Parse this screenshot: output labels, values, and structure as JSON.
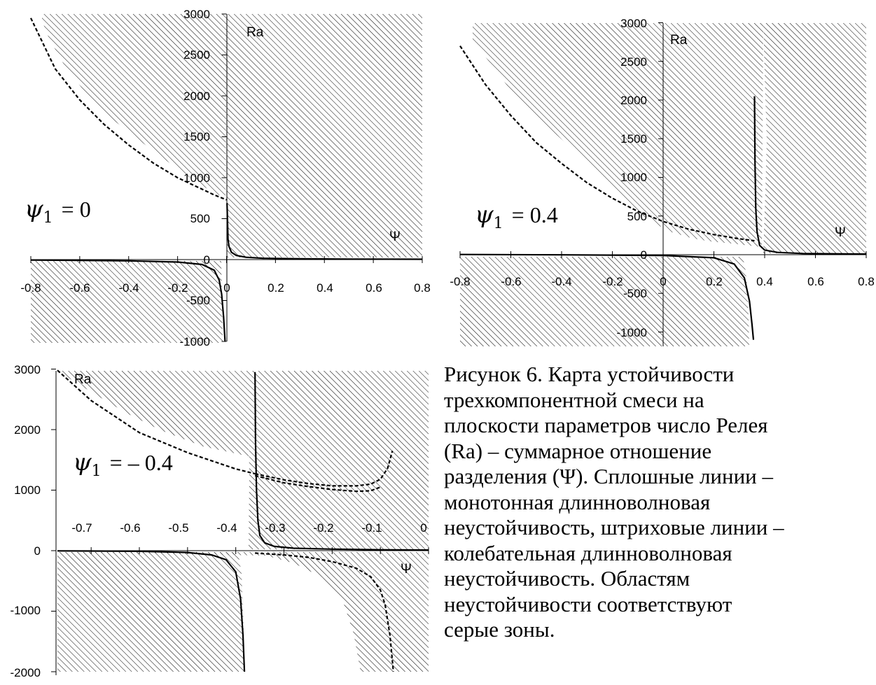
{
  "chart_data": [
    {
      "type": "line",
      "panel": "top-left",
      "label_text": "ψ₁ = 0",
      "label_symbol": "ψ",
      "label_sub": "1",
      "label_eq": "= 0",
      "xlabel": "Ψ",
      "ylabel": "Ra",
      "xlim": [
        -0.8,
        0.8
      ],
      "ylim": [
        -1000,
        3000
      ],
      "x_ticks": [
        "-0.8",
        "-0.6",
        "-0.4",
        "-0.2",
        "0",
        "0.2",
        "0.4",
        "0.6",
        "0.8"
      ],
      "y_ticks": [
        "-1000",
        "-500",
        "0",
        "500",
        "1000",
        "1500",
        "2000",
        "2500",
        "3000"
      ],
      "series": [
        {
          "style": "solid",
          "x": [
            0.002,
            0.006,
            0.01,
            0.02,
            0.04,
            0.08,
            0.15,
            0.3,
            0.5,
            0.8
          ],
          "y": [
            690,
            250,
            160,
            90,
            50,
            28,
            16,
            9,
            6,
            4
          ]
        },
        {
          "style": "solid",
          "x": [
            -0.8,
            -0.6,
            -0.4,
            -0.2,
            -0.1,
            -0.05,
            -0.03,
            -0.02,
            -0.012,
            -0.008,
            -0.006
          ],
          "y": [
            -6,
            -10,
            -15,
            -30,
            -60,
            -130,
            -250,
            -420,
            -700,
            -900,
            -1000
          ]
        },
        {
          "style": "dashed",
          "x": [
            -0.8,
            -0.7,
            -0.6,
            -0.5,
            -0.4,
            -0.3,
            -0.2,
            -0.1,
            -0.05,
            0
          ],
          "y": [
            2950,
            2330,
            1950,
            1650,
            1400,
            1180,
            1000,
            860,
            790,
            730
          ]
        }
      ],
      "shaded_regions": "hatched areas = instability"
    },
    {
      "type": "line",
      "panel": "top-right",
      "label_text": "ψ₁ = 0.4",
      "label_symbol": "ψ",
      "label_sub": "1",
      "label_eq": "= 0.4",
      "xlabel": "Ψ",
      "ylabel": "Ra",
      "xlim": [
        -0.8,
        0.8
      ],
      "ylim": [
        -1000,
        3000
      ],
      "x_ticks": [
        "-0.8",
        "-0.6",
        "-0.4",
        "-0.2",
        "0",
        "0.2",
        "0.4",
        "0.6",
        "0.8"
      ],
      "y_ticks": [
        "-1000",
        "-500",
        "0",
        "500",
        "1000",
        "1500",
        "2000",
        "2500",
        "3000"
      ],
      "series": [
        {
          "style": "solid",
          "x": [
            0.36,
            0.362,
            0.365,
            0.37,
            0.38,
            0.4,
            0.45,
            0.55,
            0.8
          ],
          "y": [
            2050,
            1200,
            600,
            300,
            120,
            60,
            30,
            15,
            8
          ]
        },
        {
          "style": "solid",
          "x": [
            -0.8,
            -0.4,
            0,
            0.2,
            0.28,
            0.32,
            0.34,
            0.35,
            0.356
          ],
          "y": [
            3,
            -2,
            -10,
            -40,
            -120,
            -300,
            -600,
            -900,
            -1100
          ]
        },
        {
          "style": "dashed",
          "x": [
            -0.8,
            -0.7,
            -0.6,
            -0.5,
            -0.4,
            -0.3,
            -0.2,
            -0.1,
            0,
            0.1,
            0.2,
            0.3,
            0.36
          ],
          "y": [
            2700,
            2200,
            1800,
            1450,
            1180,
            930,
            730,
            560,
            430,
            330,
            260,
            205,
            180
          ]
        }
      ],
      "shaded_regions": "hatched areas = instability"
    },
    {
      "type": "line",
      "panel": "bottom-left",
      "label_text": "ψ₁ = – 0.4",
      "label_symbol": "ψ",
      "label_sub": "1",
      "label_eq": "= – 0.4",
      "xlabel": "Ψ",
      "ylabel": "Ra",
      "xlim": [
        -0.77,
        0
      ],
      "ylim": [
        -2000,
        3000
      ],
      "x_ticks": [
        "-0.7",
        "-0.6",
        "-0.5",
        "-0.4",
        "-0.3",
        "-0.2",
        "-0.1",
        "0"
      ],
      "y_ticks": [
        "-2000",
        "-1000",
        "0",
        "1000",
        "2000",
        "3000"
      ],
      "series": [
        {
          "style": "solid",
          "x": [
            -0.36,
            -0.359,
            -0.357,
            -0.354,
            -0.35,
            -0.34,
            -0.32,
            -0.28,
            -0.2,
            -0.1,
            0
          ],
          "y": [
            2950,
            1800,
            1000,
            500,
            250,
            130,
            70,
            40,
            25,
            15,
            10
          ]
        },
        {
          "style": "solid",
          "x": [
            -0.77,
            -0.6,
            -0.5,
            -0.45,
            -0.42,
            -0.4,
            -0.39,
            -0.385,
            -0.382
          ],
          "y": [
            -3,
            -10,
            -30,
            -70,
            -150,
            -350,
            -800,
            -1400,
            -2000
          ]
        },
        {
          "style": "dashed",
          "x": [
            -0.77,
            -0.7,
            -0.6,
            -0.5,
            -0.4,
            -0.36
          ],
          "y": [
            2980,
            2480,
            1950,
            1620,
            1350,
            1270
          ]
        },
        {
          "style": "dashed",
          "x": [
            -0.36,
            -0.3,
            -0.25,
            -0.2,
            -0.15,
            -0.12,
            -0.1,
            -0.085,
            -0.075
          ],
          "y": [
            1270,
            1170,
            1110,
            1070,
            1070,
            1100,
            1180,
            1360,
            1650
          ]
        },
        {
          "style": "dashed",
          "x": [
            -0.36,
            -0.3,
            -0.25,
            -0.2,
            -0.15,
            -0.12,
            -0.1
          ],
          "y": [
            1240,
            1120,
            1060,
            1010,
            980,
            990,
            1050
          ]
        },
        {
          "style": "dashed",
          "x": [
            -0.36,
            -0.3,
            -0.25,
            -0.2,
            -0.15,
            -0.12,
            -0.1,
            -0.09,
            -0.08,
            -0.073
          ],
          "y": [
            -40,
            -70,
            -110,
            -180,
            -290,
            -430,
            -650,
            -900,
            -1400,
            -2000
          ]
        }
      ],
      "shaded_regions": "hatched areas = instability"
    }
  ],
  "caption_lines": [
    "Рисунок 6. Карта устойчивости",
    "трехкомпонентной смеси на",
    "плоскости параметров число Релея",
    "(Ra) – суммарное отношение",
    "разделения (Ψ). Сплошные линии –",
    "монотонная длинноволновая",
    "неустойчивость, штриховые линии –",
    "колебательная длинноволновая",
    "неустойчивость. Областям",
    "неустойчивости соответствуют",
    "серые зоны."
  ]
}
